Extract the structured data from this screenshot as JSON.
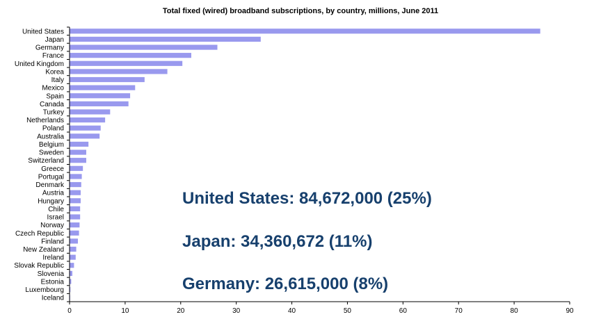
{
  "chart_data": {
    "type": "bar",
    "orientation": "horizontal",
    "title": "Total  fixed (wired) broadband subscriptions, by country, millions, June 2011",
    "xlabel": "",
    "ylabel": "",
    "xlim": [
      0,
      90
    ],
    "xticks": [
      0,
      10,
      20,
      30,
      40,
      50,
      60,
      70,
      80,
      90
    ],
    "grid": false,
    "bar_color": "#9999ee",
    "categories": [
      "United States",
      "Japan",
      "Germany",
      "France",
      "United Kingdom",
      "Korea",
      "Italy",
      "Mexico",
      "Spain",
      "Canada",
      "Turkey",
      "Netherlands",
      "Poland",
      "Australia",
      "Belgium",
      "Sweden",
      "Switzerland",
      "Greece",
      "Portugal",
      "Denmark",
      "Austria",
      "Hungary",
      "Chile",
      "Israel",
      "Norway",
      "Czech Republic",
      "Finland",
      "New Zealand",
      "Ireland",
      "Slovak Republic",
      "Slovenia",
      "Estonia",
      "Luxembourg",
      "Iceland"
    ],
    "values": [
      84.7,
      34.4,
      26.6,
      21.9,
      20.3,
      17.6,
      13.5,
      11.8,
      10.9,
      10.6,
      7.3,
      6.4,
      5.6,
      5.4,
      3.4,
      3.0,
      3.0,
      2.4,
      2.2,
      2.1,
      2.0,
      2.0,
      1.9,
      1.9,
      1.8,
      1.7,
      1.5,
      1.2,
      1.1,
      0.8,
      0.5,
      0.3,
      0.15,
      0.1
    ],
    "annotations": [
      "United States: 84,672,000 (25%)",
      "Japan: 34,360,672 (11%)",
      "Germany: 26,615,000 (8%)"
    ]
  }
}
